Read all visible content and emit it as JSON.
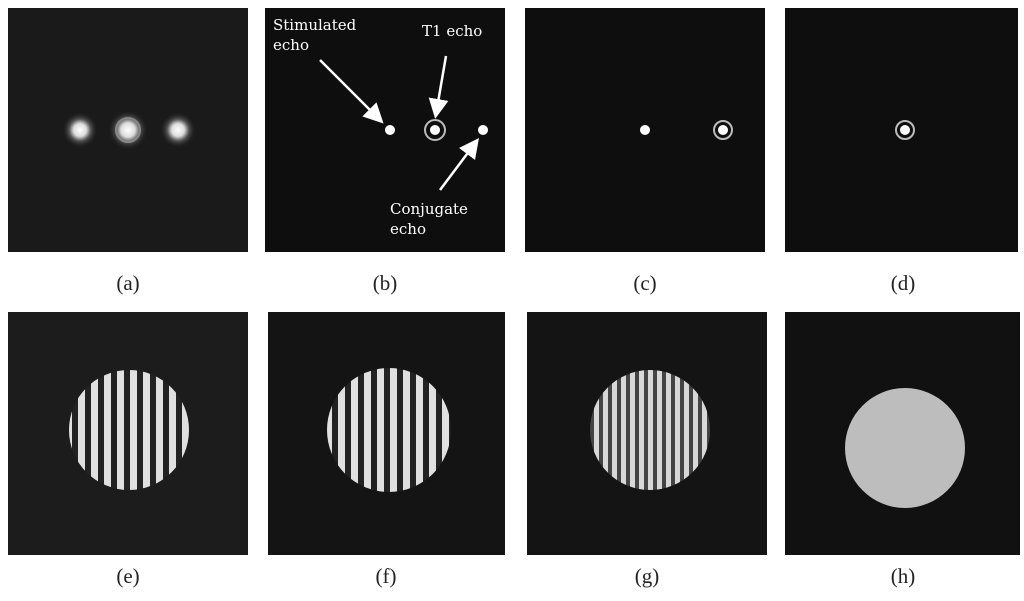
{
  "panels": [
    {
      "label": "(a)"
    },
    {
      "label": "(b)"
    },
    {
      "label": "(c)"
    },
    {
      "label": "(d)"
    },
    {
      "label": "(e)"
    },
    {
      "label": "(f)"
    },
    {
      "label": "(g)"
    },
    {
      "label": "(h)"
    }
  ],
  "annotations": [
    {
      "lines": [
        "Stimulated",
        "echo"
      ]
    },
    {
      "lines": [
        "T1 echo"
      ]
    },
    {
      "lines": [
        "Conjugate",
        "echo"
      ]
    }
  ]
}
